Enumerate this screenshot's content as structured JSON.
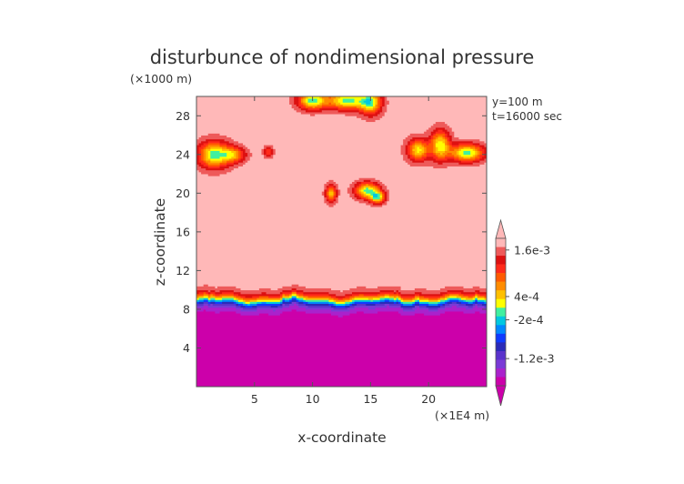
{
  "chart_data": {
    "type": "heatmap",
    "title": "disturbunce of nondimensional pressure",
    "xlabel": "x-coordinate",
    "ylabel": "z-coordinate",
    "x_unit": "(×1E4 m)",
    "y_unit": "(×1000 m)",
    "info": [
      "y=100 m",
      "t=16000 sec"
    ],
    "xlim": [
      0,
      25
    ],
    "ylim": [
      0,
      30
    ],
    "x_ticks": [
      5,
      10,
      15,
      20
    ],
    "y_ticks": [
      4,
      8,
      12,
      16,
      20,
      24,
      28
    ],
    "x_tick_labels": [
      "5",
      "10",
      "15",
      "20"
    ],
    "y_tick_labels": [
      "4",
      "8",
      "12",
      "16",
      "20",
      "24",
      "28"
    ],
    "colorbar": {
      "labels": [
        "1.6e-3",
        "4e-4",
        "-2e-4",
        "-1.2e-3"
      ],
      "label_values": [
        0.0016,
        0.0004,
        -0.0002,
        -0.0012
      ],
      "colors": [
        "#cc00aa",
        "#aa22cc",
        "#7a3ad6",
        "#5a33cc",
        "#2a2ab8",
        "#0f3aff",
        "#0088ff",
        "#00c8e0",
        "#40f0a0",
        "#ffff00",
        "#ffc000",
        "#ff8c00",
        "#ff5a00",
        "#ff2a1a",
        "#dd1010",
        "#ee5a5a",
        "#ffb8b8"
      ]
    },
    "fields": {
      "background_level": 16,
      "lower_level": 0,
      "transition_z_center": 8.9
    }
  }
}
